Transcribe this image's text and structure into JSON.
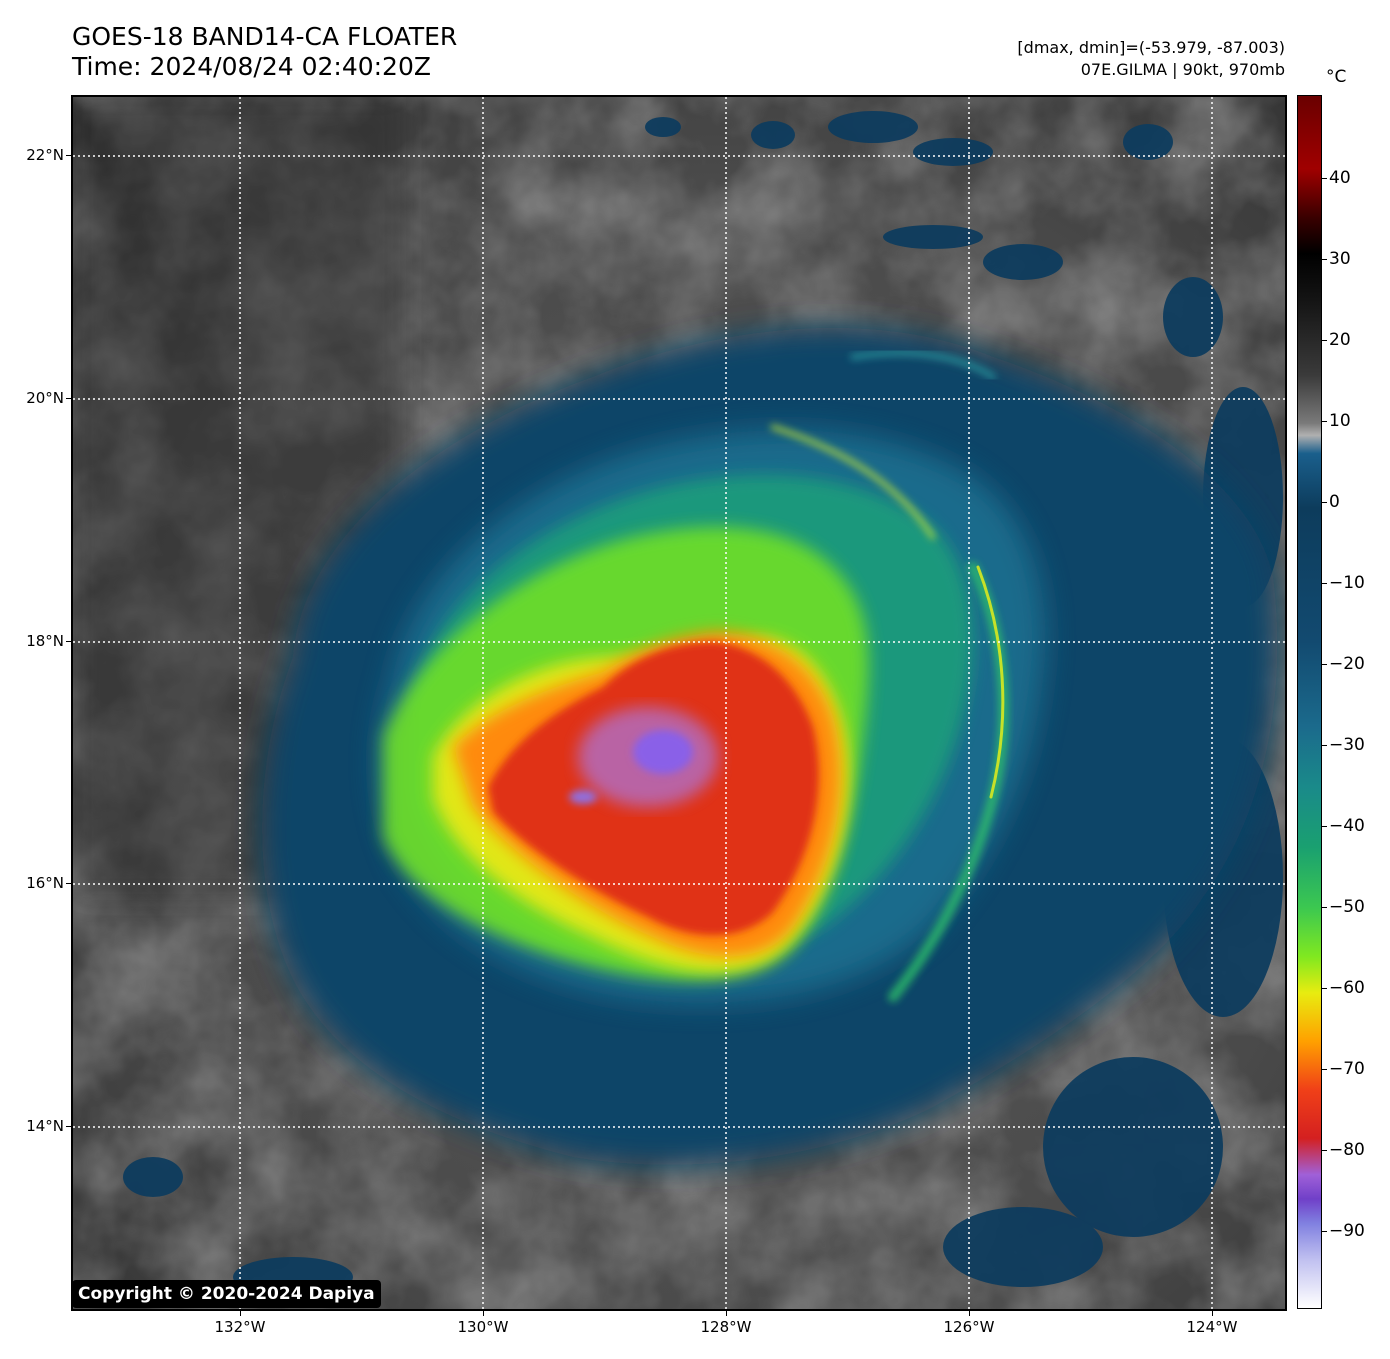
{
  "header": {
    "title_line1": "GOES-18 BAND14-CA FLOATER",
    "title_line2": "Time: 2024/08/24 02:40:20Z",
    "info_line1": "[dmax, dmin]=(-53.979, -87.003)",
    "info_line2": "07E.GILMA | 90kt, 970mb"
  },
  "map": {
    "lat_labels": [
      "22°N",
      "20°N",
      "18°N",
      "16°N",
      "14°N"
    ],
    "lon_labels": [
      "132°W",
      "130°W",
      "128°W",
      "126°W",
      "124°W"
    ],
    "gridlines": "dotted white",
    "storm": {
      "name": "07E.GILMA",
      "center_lon": -128.5,
      "center_lat": 17.1
    }
  },
  "colorbar": {
    "unit": "°C",
    "ticks": [
      "40",
      "30",
      "20",
      "10",
      "0",
      "−10",
      "−20",
      "−30",
      "−40",
      "−50",
      "−60",
      "−70",
      "−80",
      "−90"
    ],
    "colors": {
      "warm_top": "#6a0000",
      "zero": "#124a70",
      "cold_bottom": "#ffffff"
    }
  },
  "copyright": "Copyright © 2020-2024 Dapiya"
}
